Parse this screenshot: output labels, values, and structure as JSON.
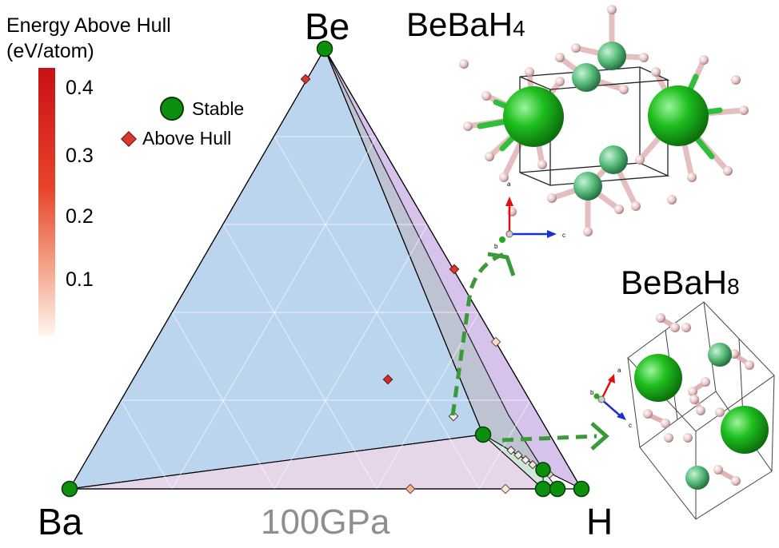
{
  "colorbar": {
    "title_line1": "Energy Above Hull",
    "title_line2": "(eV/atom)",
    "ticks": [
      "0.4",
      "0.3",
      "0.2",
      "0.1"
    ],
    "colors": {
      "high": "#c81016",
      "low": "#fff6ef"
    }
  },
  "legend": {
    "stable_label": "Stable",
    "above_label": "Above Hull",
    "stable_color": "#0c8f0c",
    "above_color": "#d63a2f"
  },
  "vertices": {
    "top": "Be",
    "left": "Ba",
    "right": "H"
  },
  "structures": [
    {
      "base": "BeBaH",
      "subscript": "4"
    },
    {
      "base": "BeBaH",
      "subscript": "8"
    }
  ],
  "pressure_label": "100GPa",
  "axis_letters": {
    "a": "a",
    "b": "b",
    "c": "c"
  },
  "colors": {
    "face_blue": "#bcd5ee",
    "face_purple": "#d6c2ea",
    "face_pink": "#e6d6ea",
    "face_gray": "#b9c4cc",
    "arrow_green": "#3a9a3a",
    "ba_atom": "#1fbf1f",
    "h_atom": "#e8c4c4"
  }
}
